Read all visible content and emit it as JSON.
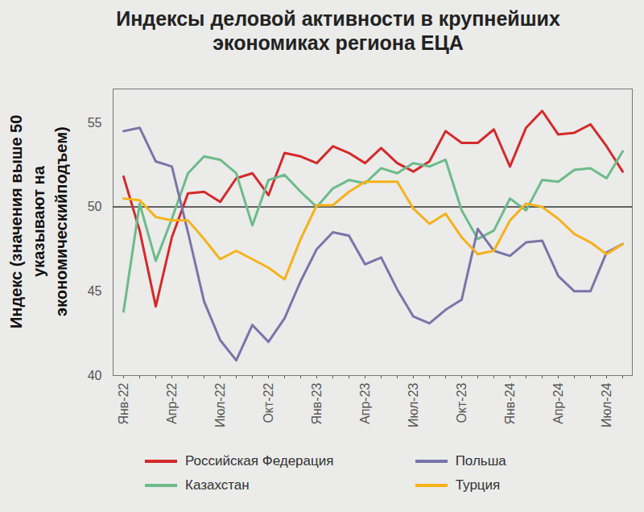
{
  "chart_data": {
    "type": "line",
    "title": "Индексы деловой активности в крупнейших экономиках региона ЕЦА",
    "ylabel": "Индекс (значения выше 50 указывают на экономическийподъем)",
    "categories": [
      "Янв-22",
      null,
      null,
      "Апр-22",
      null,
      null,
      "Июл-22",
      null,
      null,
      "Окт-22",
      null,
      null,
      "Янв-23",
      null,
      null,
      "Апр-23",
      null,
      null,
      "Июл-23",
      null,
      null,
      "Окт-23",
      null,
      null,
      "Янв-24",
      null,
      null,
      "Апр-24",
      null,
      null,
      "Июл-24",
      null
    ],
    "series": [
      {
        "name": "Российская Федерация",
        "color": "#d42a2a",
        "values": [
          51.8,
          48.6,
          44.1,
          48.2,
          50.8,
          50.9,
          50.3,
          51.7,
          52.0,
          50.7,
          53.2,
          53.0,
          52.6,
          53.6,
          53.2,
          52.6,
          53.5,
          52.6,
          52.1,
          52.7,
          54.5,
          53.8,
          53.8,
          54.6,
          52.4,
          54.7,
          55.7,
          54.3,
          54.4,
          54.9,
          53.6,
          52.1
        ]
      },
      {
        "name": "Казахстан",
        "color": "#6dbb8a",
        "values": [
          43.8,
          50.2,
          46.8,
          49.3,
          52.0,
          53.0,
          52.8,
          52.0,
          48.9,
          51.6,
          51.9,
          50.9,
          50.0,
          51.1,
          51.6,
          51.4,
          52.3,
          52.0,
          52.6,
          52.4,
          52.8,
          49.8,
          48.1,
          48.6,
          50.5,
          49.8,
          51.6,
          51.5,
          52.2,
          52.3,
          51.7,
          53.3
        ]
      },
      {
        "name": "Польша",
        "color": "#7b74a8",
        "values": [
          54.5,
          54.7,
          52.7,
          52.4,
          48.5,
          44.4,
          42.1,
          40.9,
          43.0,
          42.0,
          43.4,
          45.6,
          47.5,
          48.5,
          48.3,
          46.6,
          47.0,
          45.1,
          43.5,
          43.1,
          43.9,
          44.5,
          48.7,
          47.4,
          47.1,
          47.9,
          48.0,
          45.9,
          45.0,
          45.0,
          47.3,
          47.8
        ]
      },
      {
        "name": "Турция",
        "color": "#f5b21a",
        "values": [
          50.5,
          50.4,
          49.4,
          49.2,
          49.2,
          48.1,
          46.9,
          47.4,
          46.9,
          46.4,
          45.7,
          48.1,
          50.1,
          50.1,
          50.9,
          51.5,
          51.5,
          51.5,
          49.9,
          49.0,
          49.6,
          48.2,
          47.2,
          47.4,
          49.2,
          50.2,
          50.0,
          49.3,
          48.4,
          47.9,
          47.2,
          47.8
        ]
      }
    ],
    "ylim": [
      40,
      57
    ],
    "yticks": [
      40,
      45,
      50,
      55
    ],
    "reference_y": 50,
    "grid": false,
    "legend": "bottom"
  }
}
